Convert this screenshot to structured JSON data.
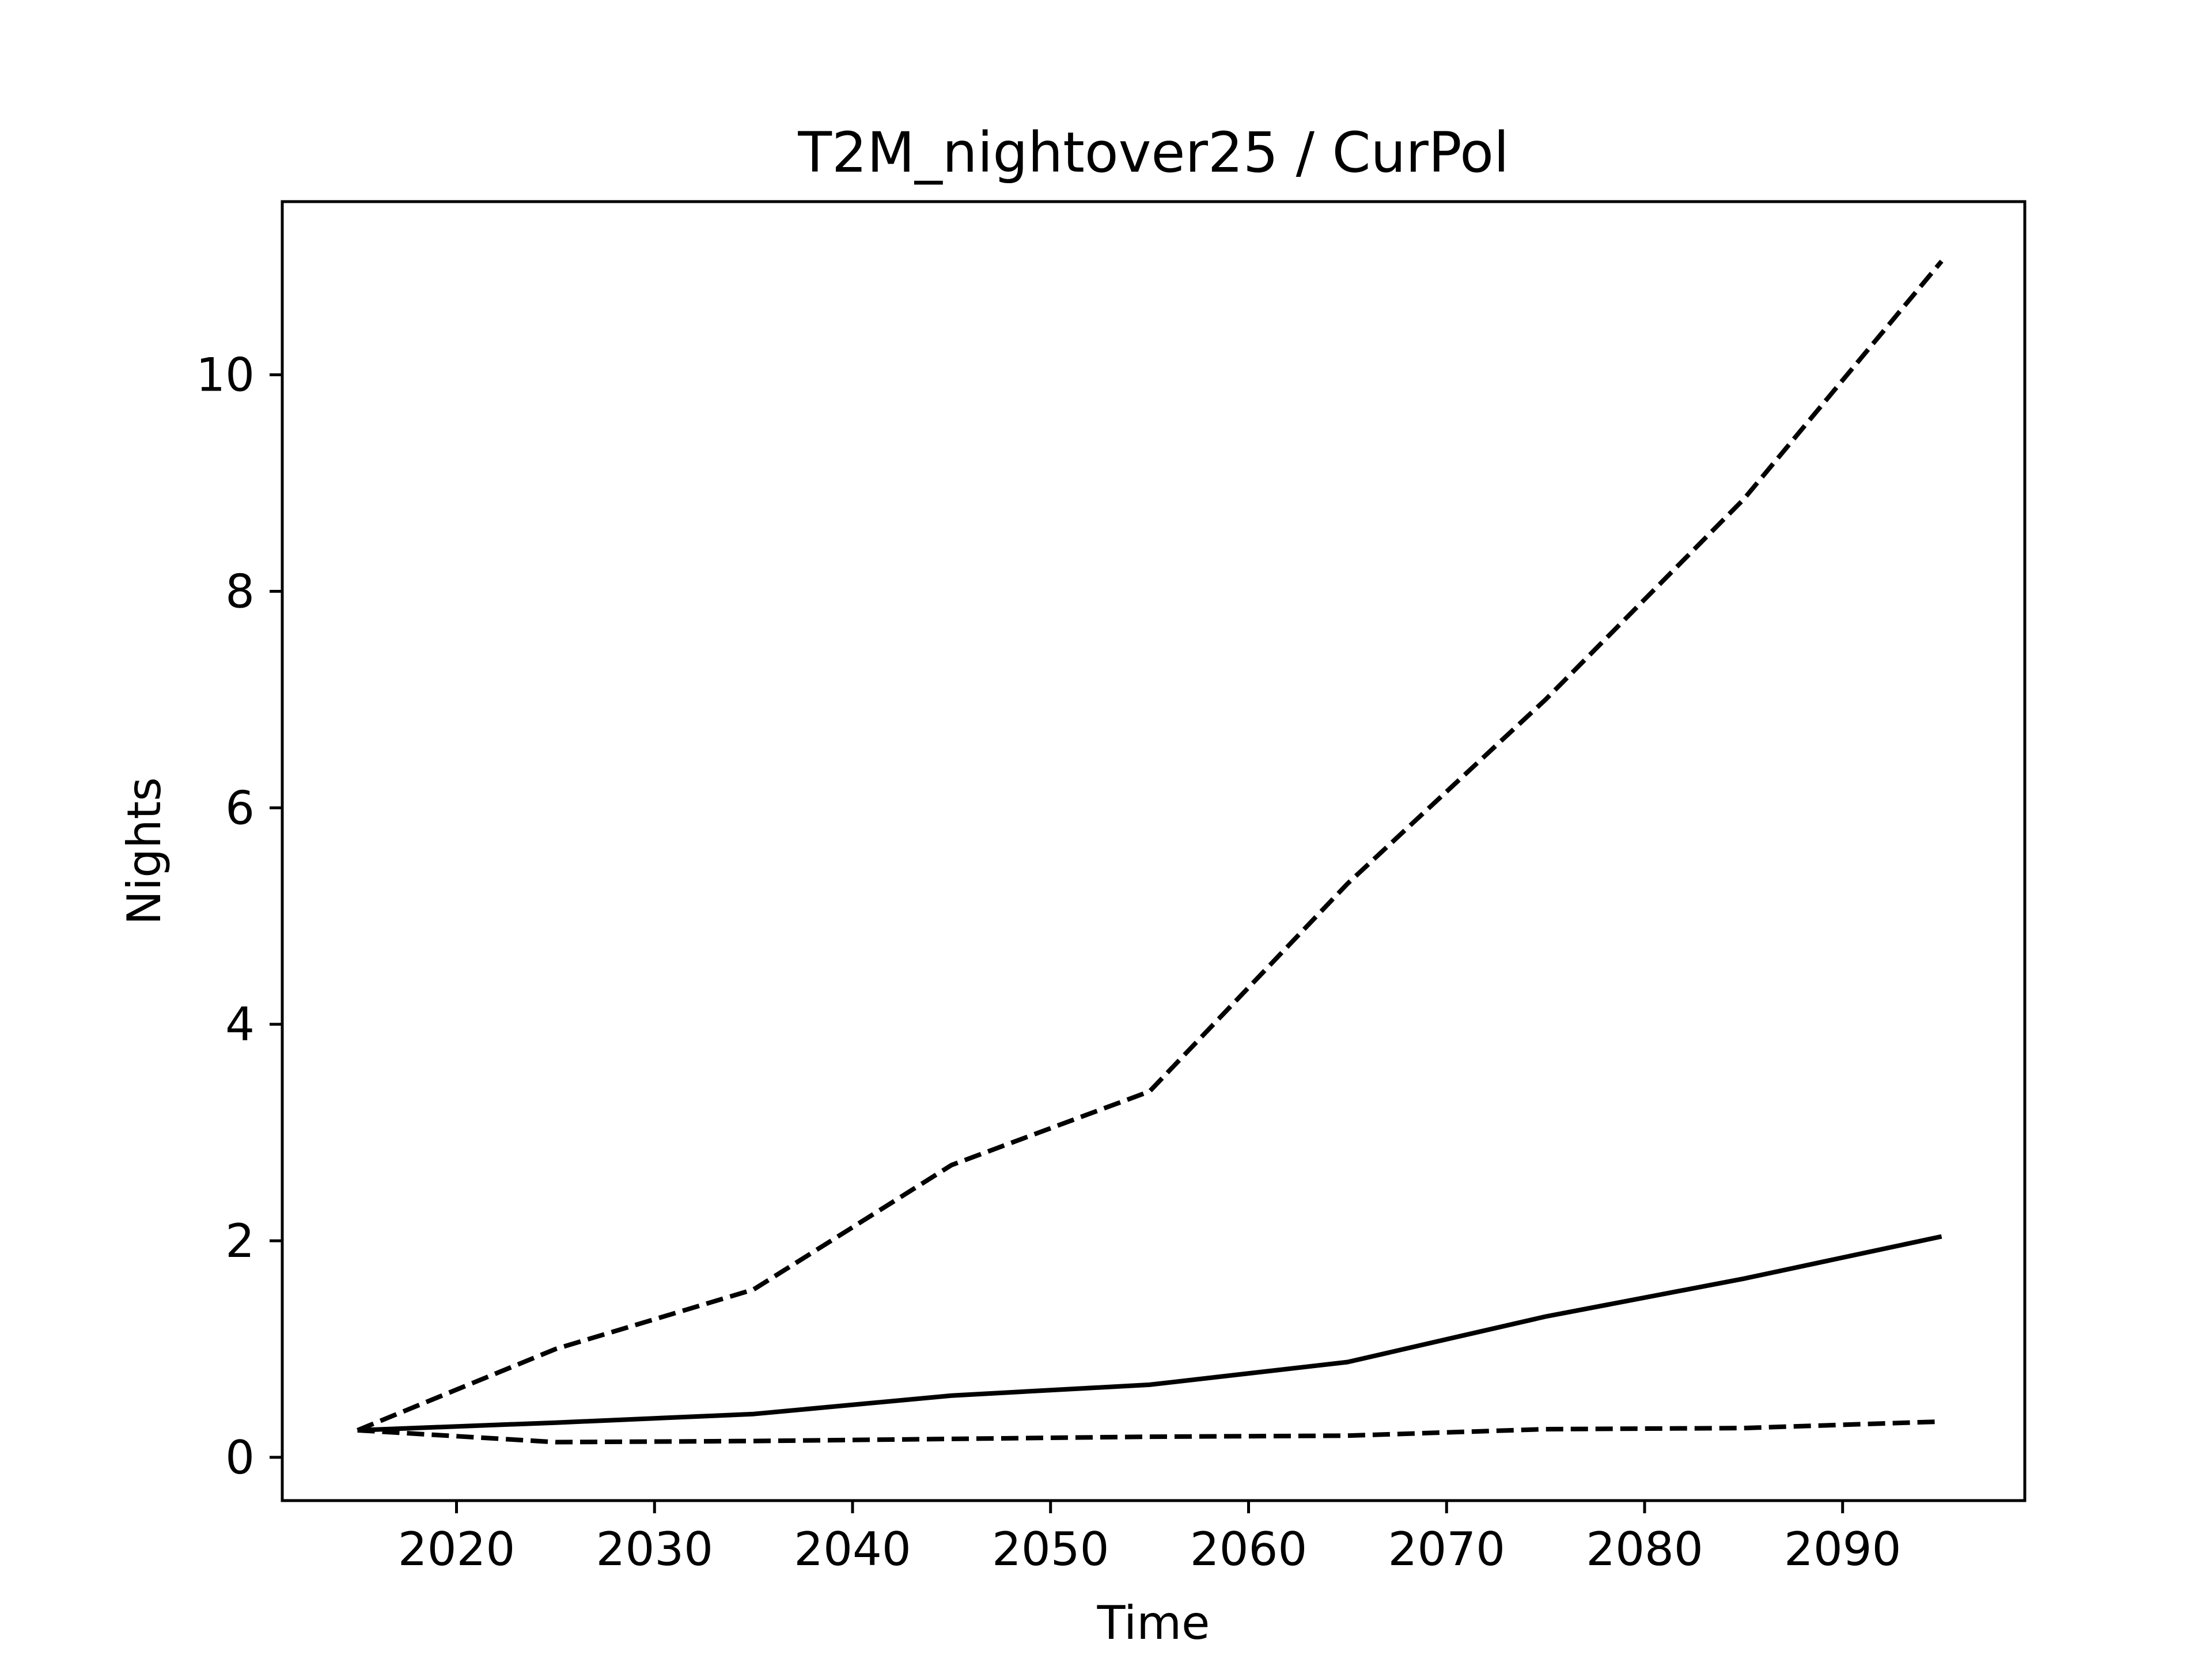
{
  "chart_data": {
    "type": "line",
    "title": "T2M_nightover25 / CurPol",
    "xlabel": "Time",
    "ylabel": "Nights",
    "xlim": [
      2011.2,
      2099.2
    ],
    "ylim": [
      -0.4,
      11.6
    ],
    "x_ticks": [
      2020,
      2030,
      2040,
      2050,
      2060,
      2070,
      2080,
      2090
    ],
    "y_ticks": [
      0,
      2,
      4,
      6,
      8,
      10
    ],
    "x": [
      2015,
      2025,
      2035,
      2045,
      2055,
      2065,
      2075,
      2085,
      2095
    ],
    "grid": false,
    "series": [
      {
        "style": "dashed",
        "color": "#000000",
        "values": [
          0.25,
          1.0,
          1.55,
          2.7,
          3.38,
          5.3,
          7.0,
          8.85,
          11.05
        ]
      },
      {
        "style": "solid",
        "color": "#000000",
        "values": [
          0.25,
          0.32,
          0.4,
          0.57,
          0.67,
          0.88,
          1.3,
          1.65,
          2.04
        ]
      },
      {
        "style": "dashed",
        "color": "#000000",
        "values": [
          0.25,
          0.14,
          0.15,
          0.17,
          0.19,
          0.2,
          0.26,
          0.27,
          0.33
        ]
      }
    ]
  }
}
